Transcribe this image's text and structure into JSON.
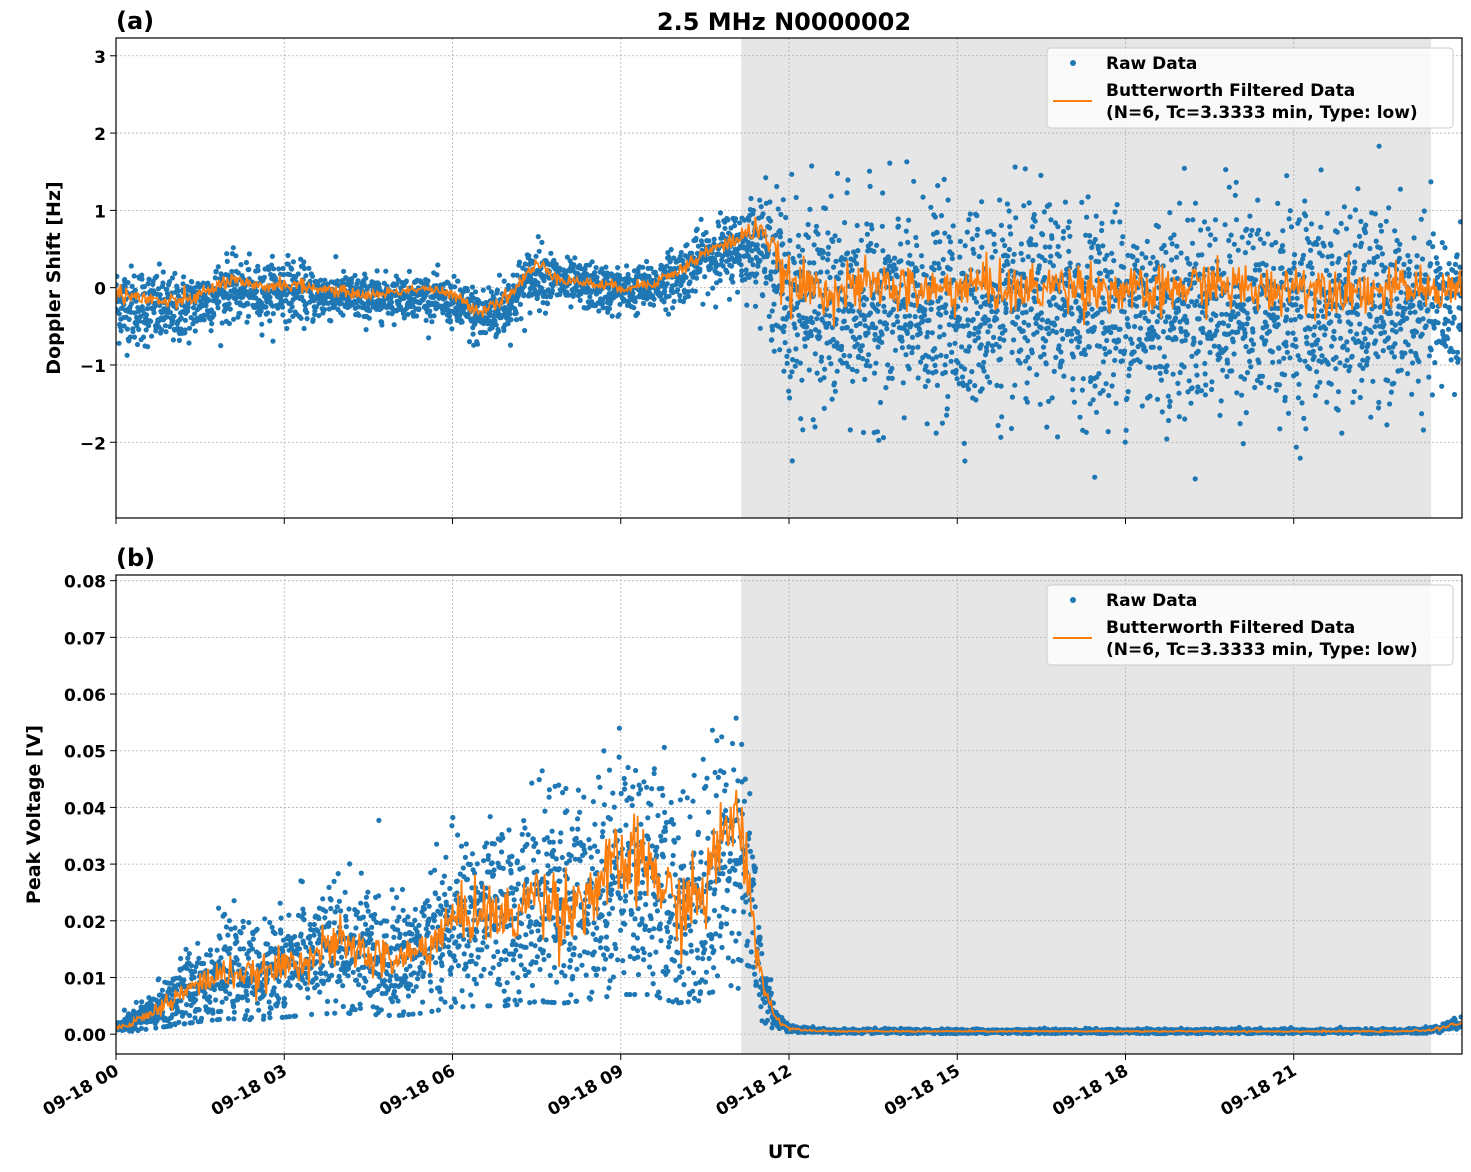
{
  "title": "2.5 MHz N0000002",
  "colors": {
    "raw": "#1f77b4",
    "filtered": "#ff7f0e",
    "shade": "#e6e6e6"
  },
  "chart_data": [
    {
      "panel_label": "(a)",
      "type": "scatter+line",
      "ylabel": "Doppler Shift [Hz]",
      "xlabel": "",
      "xlim_hours": [
        0,
        24
      ],
      "ylim": [
        -2.98,
        3.23
      ],
      "yticks": [
        -2,
        -1,
        0,
        1,
        2,
        3
      ],
      "ytick_labels": [
        "−2",
        "−1",
        "0",
        "1",
        "2",
        "3"
      ],
      "grid": true,
      "shaded_region_hours": [
        11.15,
        23.45
      ],
      "legend": {
        "position": "top-right",
        "raw_label": "Raw Data",
        "filtered_label_1": "Butterworth Filtered Data",
        "filtered_label_2": "(N=6, Tc=3.3333 min, Type: low)"
      },
      "x_hours": [
        0,
        0.5,
        1,
        1.5,
        2,
        2.5,
        3,
        3.5,
        4,
        4.5,
        5,
        5.5,
        6,
        6.5,
        7,
        7.5,
        8,
        8.5,
        9,
        9.5,
        10,
        10.5,
        11,
        11.5,
        12,
        12.5,
        13,
        13.5,
        14,
        14.5,
        15,
        15.5,
        16,
        16.5,
        17,
        17.5,
        18,
        18.5,
        19,
        19.5,
        20,
        20.5,
        21,
        21.5,
        22,
        22.5,
        23,
        23.5,
        24
      ],
      "filtered": [
        -0.05,
        -0.15,
        -0.2,
        -0.1,
        0.1,
        0.0,
        0.05,
        0.0,
        -0.05,
        -0.1,
        -0.05,
        0.0,
        -0.1,
        -0.3,
        -0.1,
        0.3,
        0.1,
        0.05,
        0.0,
        0.05,
        0.2,
        0.45,
        0.6,
        0.8,
        0.0,
        0.0,
        -0.05,
        0.05,
        0.0,
        -0.05,
        0.0,
        0.05,
        -0.05,
        0.0,
        0.05,
        0.0,
        -0.05,
        -0.1,
        0.0,
        0.05,
        0.0,
        -0.05,
        0.05,
        0.0,
        0.0,
        -0.05,
        0.0,
        -0.05,
        0.05
      ],
      "raw_mean": [
        -0.2,
        -0.25,
        -0.3,
        -0.2,
        0.0,
        -0.1,
        0.0,
        -0.1,
        -0.1,
        -0.15,
        -0.1,
        -0.1,
        -0.2,
        -0.4,
        -0.2,
        0.2,
        0.05,
        0.0,
        -0.05,
        0.0,
        0.15,
        0.4,
        0.5,
        0.6,
        -0.2,
        -0.25,
        -0.3,
        -0.25,
        -0.3,
        -0.3,
        -0.3,
        -0.25,
        -0.3,
        -0.25,
        -0.25,
        -0.3,
        -0.3,
        -0.3,
        -0.3,
        -0.25,
        -0.25,
        -0.3,
        -0.25,
        -0.25,
        -0.3,
        -0.3,
        -0.3,
        -0.3,
        -0.2
      ],
      "raw_spread": [
        0.25,
        0.25,
        0.22,
        0.2,
        0.2,
        0.18,
        0.2,
        0.17,
        0.15,
        0.15,
        0.13,
        0.13,
        0.15,
        0.2,
        0.2,
        0.2,
        0.15,
        0.15,
        0.15,
        0.15,
        0.18,
        0.2,
        0.25,
        0.3,
        0.7,
        0.65,
        0.65,
        0.65,
        0.65,
        0.65,
        0.65,
        0.65,
        0.65,
        0.65,
        0.65,
        0.65,
        0.65,
        0.65,
        0.65,
        0.65,
        0.65,
        0.65,
        0.65,
        0.65,
        0.65,
        0.6,
        0.55,
        0.5,
        0.5
      ]
    },
    {
      "panel_label": "(b)",
      "type": "scatter+line",
      "ylabel": "Peak Voltage [V]",
      "xlabel": "UTC",
      "xlim_hours": [
        0,
        24
      ],
      "ylim": [
        -0.0035,
        0.081
      ],
      "yticks": [
        0,
        0.01,
        0.02,
        0.03,
        0.04,
        0.05,
        0.06,
        0.07,
        0.08
      ],
      "ytick_labels": [
        "0.00",
        "0.01",
        "0.02",
        "0.03",
        "0.04",
        "0.05",
        "0.06",
        "0.07",
        "0.08"
      ],
      "xtick_labels": [
        "09-18 00",
        "09-18 03",
        "09-18 06",
        "09-18 09",
        "09-18 12",
        "09-18 15",
        "09-18 18",
        "09-18 21"
      ],
      "xtick_hours": [
        0,
        3,
        6,
        9,
        12,
        15,
        18,
        21
      ],
      "grid": true,
      "shaded_region_hours": [
        11.15,
        23.45
      ],
      "legend": {
        "position": "top-right",
        "raw_label": "Raw Data",
        "filtered_label_1": "Butterworth Filtered Data",
        "filtered_label_2": "(N=6, Tc=3.3333 min, Type: low)"
      },
      "x_hours": [
        0,
        0.5,
        1,
        1.5,
        2,
        2.5,
        3,
        3.5,
        4,
        4.5,
        5,
        5.5,
        6,
        6.5,
        7,
        7.5,
        8,
        8.5,
        9,
        9.5,
        10,
        10.5,
        11,
        11.25,
        11.5,
        11.75,
        12,
        12.5,
        13,
        14,
        15,
        16,
        17,
        18,
        19,
        20,
        21,
        22,
        23,
        23.5,
        24
      ],
      "filtered": [
        0.001,
        0.003,
        0.006,
        0.009,
        0.011,
        0.01,
        0.012,
        0.014,
        0.016,
        0.014,
        0.013,
        0.015,
        0.02,
        0.022,
        0.02,
        0.025,
        0.022,
        0.025,
        0.03,
        0.03,
        0.022,
        0.025,
        0.04,
        0.03,
        0.01,
        0.003,
        0.001,
        0.0006,
        0.0005,
        0.0005,
        0.0005,
        0.0005,
        0.0005,
        0.0005,
        0.0005,
        0.0005,
        0.0005,
        0.0005,
        0.0005,
        0.0008,
        0.002
      ],
      "raw_mean": [
        0.001,
        0.003,
        0.006,
        0.009,
        0.011,
        0.01,
        0.012,
        0.014,
        0.015,
        0.014,
        0.013,
        0.015,
        0.019,
        0.02,
        0.02,
        0.023,
        0.022,
        0.025,
        0.028,
        0.028,
        0.022,
        0.024,
        0.035,
        0.028,
        0.01,
        0.003,
        0.001,
        0.0006,
        0.0005,
        0.0005,
        0.0005,
        0.0005,
        0.0005,
        0.0005,
        0.0005,
        0.0005,
        0.0005,
        0.0005,
        0.0005,
        0.0008,
        0.002
      ],
      "raw_spread": [
        0.0005,
        0.0015,
        0.003,
        0.004,
        0.004,
        0.004,
        0.005,
        0.005,
        0.006,
        0.006,
        0.005,
        0.006,
        0.007,
        0.008,
        0.008,
        0.009,
        0.01,
        0.01,
        0.011,
        0.011,
        0.01,
        0.011,
        0.012,
        0.01,
        0.004,
        0.001,
        0.0003,
        0.0002,
        0.0002,
        0.0002,
        0.0002,
        0.0002,
        0.0002,
        0.0002,
        0.0002,
        0.0002,
        0.0002,
        0.0002,
        0.0002,
        0.0003,
        0.0005
      ]
    }
  ]
}
